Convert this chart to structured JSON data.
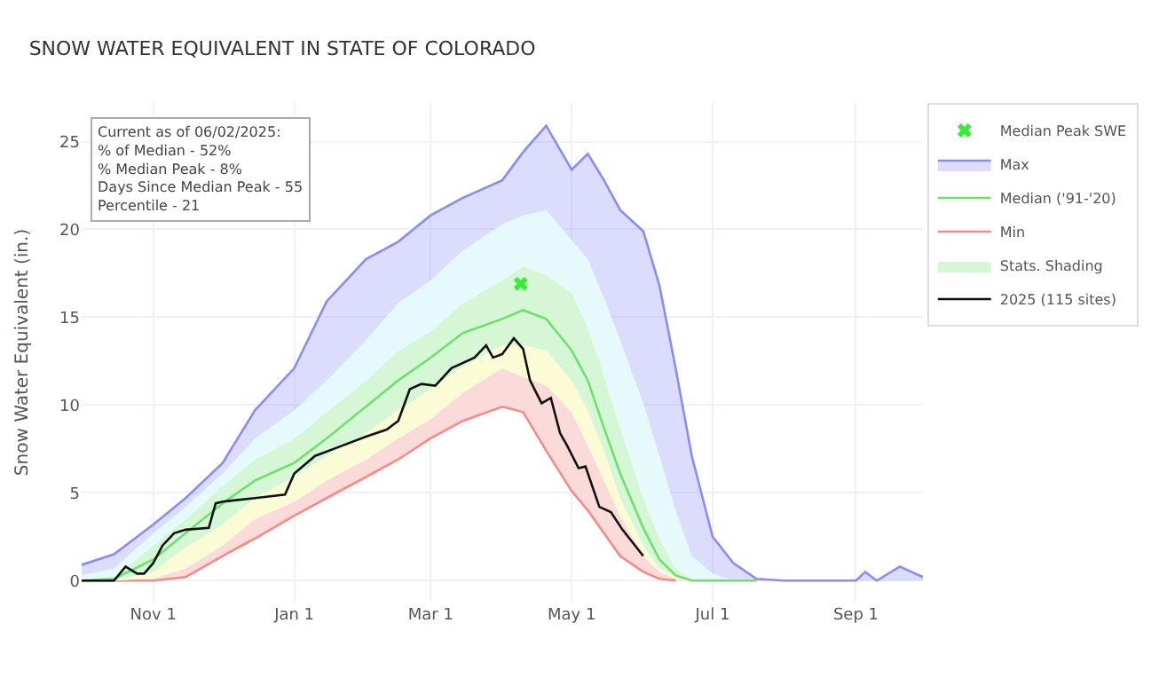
{
  "chart_data": {
    "type": "line",
    "title": "SNOW WATER EQUIVALENT IN STATE OF COLORADO",
    "ylabel": "Snow Water Equivalent (in.)",
    "x": [
      "2024-10-01",
      "2024-10-15",
      "2024-11-01",
      "2024-11-15",
      "2024-12-01",
      "2024-12-15",
      "2025-01-01",
      "2025-01-15",
      "2025-02-01",
      "2025-02-15",
      "2025-03-01",
      "2025-03-15",
      "2025-04-01",
      "2025-04-10",
      "2025-04-20",
      "2025-05-01",
      "2025-05-08",
      "2025-05-15",
      "2025-05-22",
      "2025-06-01",
      "2025-06-08",
      "2025-06-15",
      "2025-06-22",
      "2025-07-01",
      "2025-07-10",
      "2025-07-20",
      "2025-08-01",
      "2025-08-20",
      "2025-09-01",
      "2025-09-05",
      "2025-09-10",
      "2025-09-20",
      "2025-09-30"
    ],
    "series": [
      {
        "name": "Min",
        "color": "#f48a8a",
        "values": [
          0,
          0,
          0,
          0.2,
          1.4,
          2.4,
          3.7,
          4.7,
          5.9,
          6.9,
          8.1,
          9.1,
          9.9,
          9.6,
          7.4,
          5.1,
          4.0,
          2.7,
          1.4,
          0.5,
          0.1,
          0,
          null,
          null,
          null,
          null,
          null,
          null,
          null,
          null,
          null,
          null,
          null
        ]
      },
      {
        "type": "area",
        "color": "#fbdada",
        "values": [
          0,
          0,
          0.1,
          0.7,
          2.0,
          3.5,
          4.5,
          5.7,
          6.9,
          8.1,
          9.2,
          10.7,
          12.1,
          11.6,
          11.1,
          9.6,
          7.7,
          5.7,
          3.7,
          1.4,
          0.5,
          0.1,
          0,
          0,
          0,
          0,
          0,
          0,
          0,
          0,
          0,
          0,
          0
        ]
      },
      {
        "type": "area",
        "color": "#fbfbd6",
        "values": [
          0,
          0,
          0.5,
          1.9,
          3.2,
          4.7,
          5.9,
          7.1,
          8.4,
          9.7,
          10.9,
          12.2,
          13.4,
          13.4,
          13.1,
          11.4,
          9.7,
          7.4,
          4.7,
          2.0,
          0.7,
          0.2,
          0,
          0,
          0,
          0,
          0,
          0,
          0,
          0,
          0,
          0,
          0
        ]
      },
      {
        "type": "area",
        "name": "Stats. Shading",
        "color": "#d6f7d6",
        "values": [
          0.1,
          0.2,
          2.0,
          3.5,
          5.4,
          6.9,
          8.1,
          9.6,
          11.4,
          13.1,
          14.2,
          15.8,
          17.1,
          17.9,
          17.4,
          16.4,
          14.4,
          11.7,
          8.7,
          4.7,
          2.4,
          0.7,
          0.1,
          0,
          0,
          0,
          0,
          0,
          0,
          0,
          0,
          0,
          0
        ]
      },
      {
        "type": "area",
        "color": "#e6fafc",
        "values": [
          0.3,
          0.7,
          2.7,
          4.2,
          6.1,
          8.1,
          9.7,
          11.4,
          13.7,
          15.8,
          17.1,
          18.8,
          20.3,
          20.8,
          21.1,
          19.4,
          18.3,
          16.1,
          13.7,
          10.1,
          7.1,
          4.0,
          1.4,
          0.4,
          0,
          0,
          0,
          0,
          0,
          0,
          0,
          0,
          0
        ]
      },
      {
        "name": "Max",
        "color": "#8a8cf5",
        "values": [
          0.9,
          1.5,
          3.2,
          4.7,
          6.7,
          9.7,
          12.1,
          15.9,
          18.3,
          19.3,
          20.8,
          21.8,
          22.8,
          24.4,
          25.9,
          23.4,
          24.3,
          22.8,
          21.1,
          19.9,
          16.8,
          12.1,
          7.1,
          2.5,
          1.0,
          0.1,
          0,
          0,
          0,
          0.5,
          0,
          0.8,
          0.2
        ]
      },
      {
        "name": "Median ('91-'20)",
        "color": "#6fe06f",
        "values": [
          0,
          0.1,
          1.2,
          2.7,
          4.4,
          5.7,
          6.7,
          8.1,
          9.9,
          11.4,
          12.7,
          14.1,
          14.9,
          15.4,
          14.9,
          13.1,
          11.4,
          8.7,
          6.1,
          3.0,
          1.2,
          0.3,
          0,
          0,
          0,
          0,
          null,
          null,
          null,
          null,
          null,
          null,
          null
        ]
      },
      {
        "name": "2025 (115 sites)",
        "color": "#111111",
        "x": [
          "2024-10-01",
          "2024-10-15",
          "2024-10-20",
          "2024-10-25",
          "2024-10-28",
          "2024-11-01",
          "2024-11-05",
          "2024-11-10",
          "2024-11-15",
          "2024-11-25",
          "2024-11-28",
          "2024-12-01",
          "2024-12-15",
          "2024-12-28",
          "2025-01-01",
          "2025-01-10",
          "2025-01-20",
          "2025-02-01",
          "2025-02-10",
          "2025-02-15",
          "2025-02-20",
          "2025-02-25",
          "2025-03-03",
          "2025-03-10",
          "2025-03-20",
          "2025-03-25",
          "2025-03-28",
          "2025-04-01",
          "2025-04-06",
          "2025-04-10",
          "2025-04-13",
          "2025-04-18",
          "2025-04-22",
          "2025-04-26",
          "2025-04-29",
          "2025-05-04",
          "2025-05-07",
          "2025-05-13",
          "2025-05-18",
          "2025-05-23",
          "2025-06-01"
        ],
        "values": [
          0,
          0,
          0.8,
          0.4,
          0.4,
          1.0,
          2.0,
          2.7,
          2.9,
          3.0,
          4.4,
          4.5,
          4.7,
          4.9,
          6.1,
          7.1,
          7.6,
          8.2,
          8.6,
          9.1,
          10.9,
          11.2,
          11.1,
          12.1,
          12.7,
          13.4,
          12.7,
          12.9,
          13.8,
          13.2,
          11.4,
          10.1,
          10.4,
          8.4,
          7.7,
          6.4,
          6.5,
          4.2,
          3.9,
          2.9,
          1.4
        ]
      },
      {
        "type": "scatter",
        "name": "Median Peak SWE",
        "color": "#33ee33",
        "marker": "cross",
        "x": [
          "2025-04-09"
        ],
        "values": [
          16.9
        ]
      }
    ],
    "annotations": [
      "Current as of 06/02/2025:\n% of Median - 52%\n% Median Peak - 8%\nDays Since Median Peak - 55\nPercentile - 21"
    ],
    "xlim": [
      "2024-10-01",
      "2025-09-30"
    ],
    "xticks": [
      {
        "value": "2024-11-01",
        "label": "Nov 1"
      },
      {
        "value": "2025-01-01",
        "label": "Jan 1"
      },
      {
        "value": "2025-03-01",
        "label": "Mar 1"
      },
      {
        "value": "2025-05-01",
        "label": "May 1"
      },
      {
        "value": "2025-07-01",
        "label": "Jul 1"
      },
      {
        "value": "2025-09-01",
        "label": "Sep 1"
      }
    ],
    "ylim": [
      -1.2,
      27.2
    ],
    "yticks": [
      0,
      5,
      10,
      15,
      20,
      25
    ],
    "grid": true,
    "legend": "top right",
    "line_style": "solid"
  }
}
